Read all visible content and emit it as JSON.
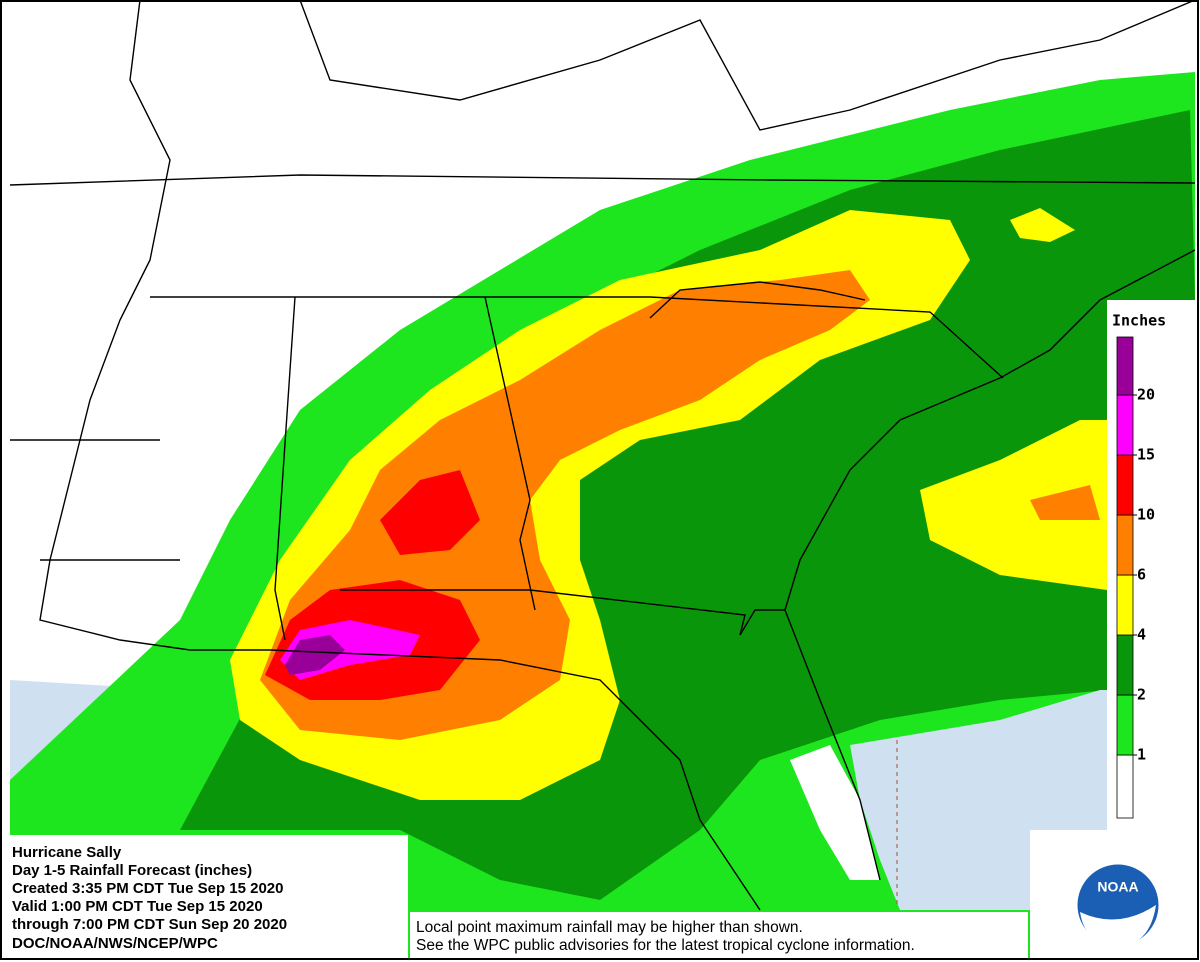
{
  "title_block": {
    "lines": [
      "Hurricane Sally",
      "Day 1-5 Rainfall Forecast (inches)",
      "Created 3:35 PM CDT Tue Sep 15 2020",
      "Valid 1:00 PM CDT Tue Sep 15 2020",
      "through 7:00 PM CDT Sun Sep 20 2020",
      "DOC/NOAA/NWS/NCEP/WPC"
    ]
  },
  "legend": {
    "title": "Inches",
    "ticks": [
      1,
      2,
      4,
      6,
      10,
      15,
      20
    ],
    "colors": [
      "#ffffff",
      "#1ee61e",
      "#0a960a",
      "#ffff00",
      "#ff8000",
      "#ff0000",
      "#ff00ff",
      "#990099"
    ]
  },
  "notes": [
    "Local point maximum rainfall may be higher than shown.",
    "See the WPC public advisories for the latest tropical cyclone information."
  ],
  "logo": "NOAA"
}
